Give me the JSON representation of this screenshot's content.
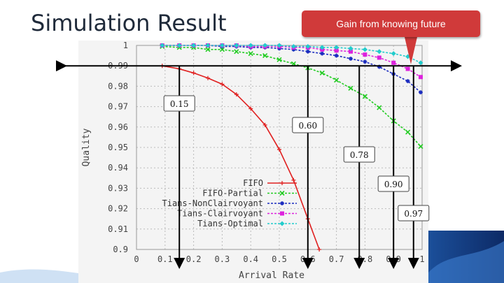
{
  "slide": {
    "title": "Simulation Result",
    "callout": "Gain from knowing future"
  },
  "chart_data": {
    "type": "line",
    "xlabel": "Arrival Rate",
    "ylabel": "Quality",
    "xlim": [
      0,
      1
    ],
    "ylim": [
      0.9,
      1.0
    ],
    "xticks": [
      "0",
      "0.1",
      "0.2",
      "0.3",
      "0.4",
      "0.5",
      "0.6",
      "0.7",
      "0.8",
      "0.9",
      "1"
    ],
    "yticks": [
      "0.9",
      "0.91",
      "0.92",
      "0.93",
      "0.94",
      "0.95",
      "0.96",
      "0.97",
      "0.98",
      "0.99",
      "1"
    ],
    "grid": true,
    "legend": "bottom-left",
    "series": [
      {
        "name": "FIFO",
        "color": "#e02020",
        "marker": "plus",
        "x": [
          0.09,
          0.15,
          0.2,
          0.25,
          0.3,
          0.35,
          0.4,
          0.45,
          0.5,
          0.55,
          0.6,
          0.64
        ],
        "y": [
          0.99,
          0.9885,
          0.9865,
          0.984,
          0.981,
          0.976,
          0.969,
          0.961,
          0.949,
          0.934,
          0.915,
          0.9
        ]
      },
      {
        "name": "FIFO-Partial",
        "color": "#22cc22",
        "marker": "x",
        "x": [
          0.09,
          0.15,
          0.2,
          0.25,
          0.3,
          0.35,
          0.4,
          0.45,
          0.5,
          0.55,
          0.6,
          0.65,
          0.7,
          0.75,
          0.8,
          0.85,
          0.9,
          0.95,
          0.995
        ],
        "y": [
          0.9995,
          0.999,
          0.999,
          0.998,
          0.998,
          0.997,
          0.996,
          0.995,
          0.993,
          0.991,
          0.989,
          0.9865,
          0.983,
          0.979,
          0.975,
          0.9695,
          0.963,
          0.9575,
          0.9505
        ]
      },
      {
        "name": "Tians-NonClairvoyant",
        "color": "#1a2bbf",
        "marker": "star",
        "x": [
          0.09,
          0.15,
          0.2,
          0.25,
          0.3,
          0.35,
          0.4,
          0.45,
          0.5,
          0.55,
          0.6,
          0.65,
          0.7,
          0.75,
          0.8,
          0.85,
          0.9,
          0.95,
          0.995
        ],
        "y": [
          1.0,
          1.0,
          1.0,
          1.0,
          0.9995,
          0.9995,
          0.999,
          0.999,
          0.9985,
          0.998,
          0.997,
          0.996,
          0.995,
          0.9935,
          0.992,
          0.9895,
          0.986,
          0.9825,
          0.977
        ]
      },
      {
        "name": "Tians-Clairvoyant",
        "color": "#dd22dd",
        "marker": "square",
        "x": [
          0.09,
          0.15,
          0.2,
          0.25,
          0.3,
          0.35,
          0.4,
          0.45,
          0.5,
          0.55,
          0.6,
          0.65,
          0.7,
          0.75,
          0.8,
          0.85,
          0.9,
          0.95,
          0.995
        ],
        "y": [
          1.0,
          1.0,
          1.0,
          1.0,
          1.0,
          1.0,
          0.9995,
          0.9995,
          0.9995,
          0.999,
          0.999,
          0.998,
          0.9975,
          0.997,
          0.9955,
          0.994,
          0.9915,
          0.9885,
          0.9845
        ]
      },
      {
        "name": "Tians-Optimal",
        "color": "#22cccc",
        "marker": "diamond",
        "x": [
          0.09,
          0.15,
          0.2,
          0.25,
          0.3,
          0.35,
          0.4,
          0.45,
          0.5,
          0.55,
          0.6,
          0.65,
          0.7,
          0.75,
          0.8,
          0.85,
          0.9,
          0.95,
          0.995
        ],
        "y": [
          1.0,
          1.0,
          1.0,
          1.0,
          1.0,
          1.0,
          1.0,
          1.0,
          1.0,
          0.9995,
          0.9995,
          0.999,
          0.999,
          0.9985,
          0.998,
          0.997,
          0.996,
          0.9945,
          0.9915
        ]
      }
    ],
    "reference_line": {
      "y": 0.99
    },
    "annotations": [
      {
        "label": "0.15",
        "x": 0.15
      },
      {
        "label": "0.60",
        "x": 0.6
      },
      {
        "label": "0.78",
        "x": 0.78
      },
      {
        "label": "0.90",
        "x": 0.9
      },
      {
        "label": "0.97",
        "x": 0.97
      }
    ]
  }
}
